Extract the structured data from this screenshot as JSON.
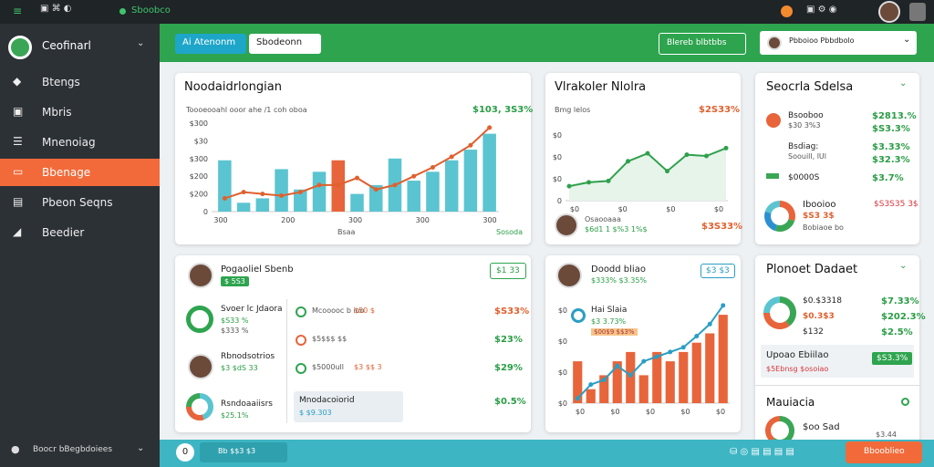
{
  "topbar": {
    "app": "Sboobco"
  },
  "sidebar": {
    "user": "Ceofinarl",
    "menu": [
      "Btengs",
      "Mbris",
      "Mnenoiag",
      "Bbenage",
      "Pbeon Seqns",
      "Beedier"
    ],
    "active": 3,
    "footer": "Boocr bBegbdoiees"
  },
  "header": {
    "tab1": "Ai Atenonm",
    "tab2": "Sbodeonn",
    "action": "Blereb blbtbbs",
    "account": "Pbboioo Pbbdbolo"
  },
  "sales": {
    "title": "Noodaidrlongian",
    "subtitle": "Toooeooahl ooor ahe /1 coh oboa",
    "total": "$103, 3S3%",
    "yaxis": [
      "$300",
      "$30",
      "$300",
      "$200",
      "$200",
      "0"
    ],
    "xaxis": [
      "300",
      "200",
      "300",
      "300",
      "300"
    ],
    "xtitle": "Bsaa",
    "legend": "Sosoda",
    "ylim": [
      0,
      100
    ],
    "bars": [
      58,
      10,
      15,
      48,
      25,
      45,
      58,
      20,
      30,
      60,
      35,
      45,
      58,
      70,
      88
    ],
    "bar_colors": [
      "#5bc4d1",
      "#5bc4d1",
      "#5bc4d1",
      "#5bc4d1",
      "#5bc4d1",
      "#5bc4d1",
      "#e8643a",
      "#5bc4d1",
      "#5bc4d1",
      "#5bc4d1",
      "#5bc4d1",
      "#5bc4d1",
      "#5bc4d1",
      "#5bc4d1",
      "#5bc4d1"
    ],
    "line": [
      15,
      22,
      20,
      18,
      22,
      30,
      30,
      38,
      25,
      30,
      40,
      50,
      62,
      75,
      95
    ],
    "line_color": "#e0602e"
  },
  "visitors": {
    "title": "Vlrakoler Nlolra",
    "subtitle": "Bmg lelos",
    "total": "$2S33%",
    "yaxis": [
      "$0",
      "$0",
      "$0",
      "0"
    ],
    "xaxis": [
      "$0",
      "$0",
      "$0",
      "$0"
    ],
    "ylim": [
      0,
      100
    ],
    "line": [
      22,
      28,
      30,
      60,
      72,
      45,
      70,
      68,
      80
    ],
    "line_color": "#2fa04c",
    "person": "Osaooaaa",
    "person_sub": "$6d1 1 $%3 1%$",
    "person_value": "$3S33%"
  },
  "segments": {
    "title": "Seocrla Sdelsa",
    "rows": [
      [
        "Bsooboo",
        "$30 3%3",
        "$2813.%",
        "$S3.3%"
      ],
      [
        "Bsdiag:",
        "Soouill, lUl",
        "$3.33%",
        "$32.3%"
      ],
      [
        "$0000S",
        "",
        "$3.7%",
        ""
      ]
    ],
    "donut_title": "Ibooioo",
    "donut_value": "$S3 3$",
    "donut_sub": "Bobiaoe bo",
    "donut_total": "$S3S35 3$",
    "donut": [
      30,
      25,
      25,
      20
    ],
    "donut_colors": [
      "#e8643a",
      "#3aa655",
      "#2b8fd1",
      "#5bc4d1"
    ]
  },
  "profile": {
    "name": "Pogaoliel Sbenb",
    "badge": "$ 5S3",
    "button": "$1 33",
    "left": [
      [
        "Svoer lc Jdaora",
        "$S33 %",
        "$333 %"
      ],
      [
        "Rbnodsotrios",
        "$3 $dS 33",
        ""
      ],
      [
        "Rsndoaaiisrs",
        "$25.1%",
        ""
      ]
    ],
    "right": [
      [
        "Mcooooc b ioo",
        "$50 $",
        "$S33%"
      ],
      [
        "$5$$$ $$",
        "",
        "$23%"
      ],
      [
        "$5000ull",
        "$3 $$ 3",
        "$29%"
      ]
    ],
    "box_title": "Mnodacoiorid",
    "box_value": "$ $9.303",
    "box_pct": "$0.5%",
    "donut": [
      45,
      30,
      25
    ],
    "donut_colors": [
      "#5bc4d1",
      "#e8643a",
      "#3aa655"
    ]
  },
  "growth": {
    "name": "Doodd bliao",
    "sub": "$333% $3.35%",
    "badge": "$3 $3",
    "item": "Hai Slaia",
    "item_sub": "$3 3.73%",
    "item_tag": "$00$9 $$3%",
    "yaxis": [
      "$0",
      "$0",
      "$0",
      "$0"
    ],
    "xaxis": [
      "$0",
      "$0",
      "$0",
      "$0",
      "$0"
    ],
    "ylim": [
      0,
      100
    ],
    "bars": [
      45,
      15,
      30,
      45,
      55,
      30,
      55,
      45,
      55,
      65,
      75,
      95
    ],
    "bar_color": "#e8643a",
    "line": [
      5,
      20,
      25,
      40,
      30,
      45,
      50,
      55,
      60,
      72,
      85,
      105
    ],
    "line_color": "#2a9ec4"
  },
  "budget": {
    "title": "Plonoet Dadaet",
    "rows": [
      [
        "$0.$3318",
        "$7.33%"
      ],
      [
        "$0.3$3",
        "$202.3%"
      ],
      [
        "$132",
        "$2.5%"
      ]
    ],
    "donut": [
      40,
      35,
      25
    ],
    "donut_colors": [
      "#3aa655",
      "#e8643a",
      "#5bc4d1"
    ],
    "highlight": "Upoao Ebiilao",
    "highlight_sub": "$5Ebnsg $osoiao",
    "highlight_badge": "$S3.3%",
    "sub_title": "Mauiacia",
    "sub_item": "$oo Sad",
    "sub_value": "$3.44",
    "donut2": [
      60,
      40
    ],
    "donut2_colors": [
      "#3aa655",
      "#e8643a"
    ]
  },
  "bottombar": {
    "count": "0",
    "chip": "Bb $$3 $3",
    "button": "Bbooblieo"
  }
}
